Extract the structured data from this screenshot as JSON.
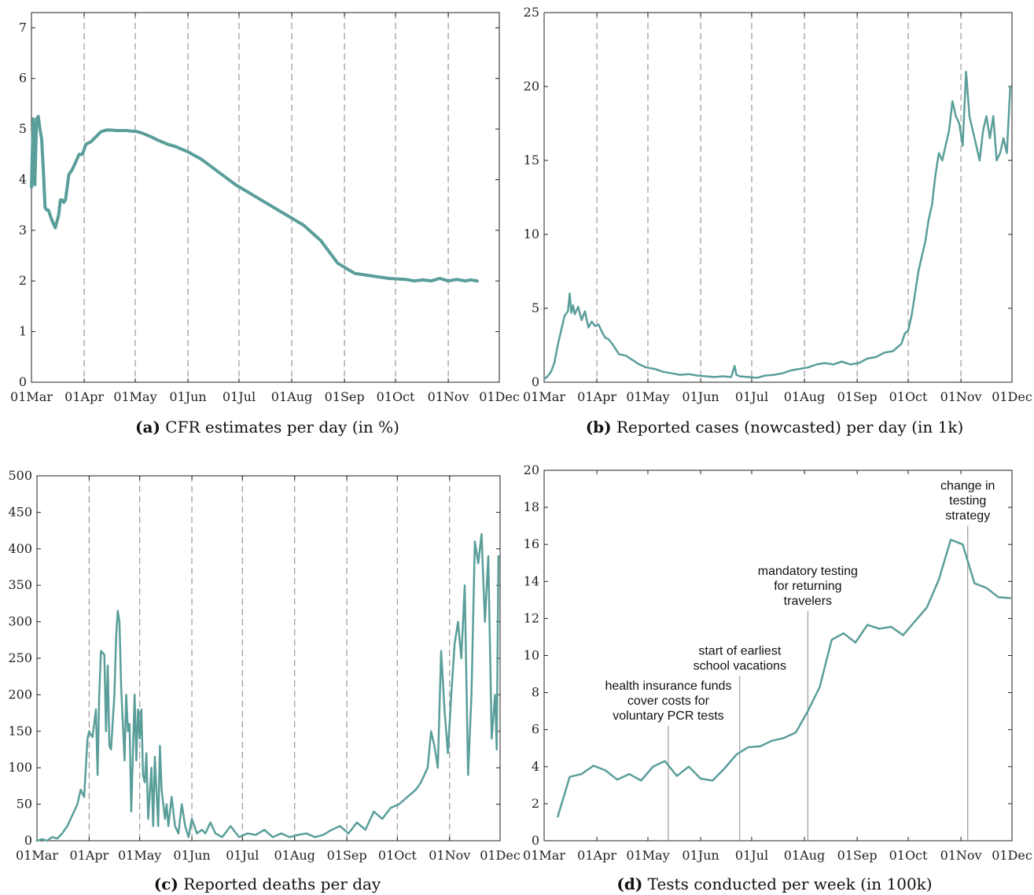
{
  "chart_data": [
    {
      "panel": "(a)",
      "type": "line",
      "title": "CFR estimates per day (in %)",
      "x_ticks": [
        "01Mar",
        "01Apr",
        "01May",
        "01Jun",
        "01Jul",
        "01Aug",
        "01Sep",
        "01Oct",
        "01Nov",
        "01Dec"
      ],
      "ylim": [
        0,
        7.3
      ],
      "y_ticks": [
        "0",
        "1",
        "2",
        "3",
        "4",
        "5",
        "6",
        "7"
      ],
      "vlines_at_months": true,
      "color": "#5a9e9a",
      "series": [
        {
          "x": [
            0,
            1,
            2,
            3,
            4,
            5,
            6,
            7,
            8,
            9,
            10,
            12,
            14,
            16,
            17,
            18,
            19,
            20,
            22,
            24,
            26,
            28,
            30,
            32,
            35,
            38,
            41,
            44,
            47,
            50,
            53,
            56,
            59,
            62,
            65,
            70,
            75,
            80,
            85,
            92,
            100,
            110,
            120,
            130,
            140,
            150,
            160,
            170,
            180,
            190,
            200,
            210,
            220,
            225,
            230,
            235,
            240,
            245,
            250,
            255,
            258,
            262
          ],
          "y": [
            3.85,
            5.2,
            3.9,
            5.2,
            5.25,
            5.0,
            4.8,
            4.2,
            3.45,
            3.4,
            3.4,
            3.2,
            3.05,
            3.3,
            3.6,
            3.6,
            3.55,
            3.6,
            4.1,
            4.2,
            4.35,
            4.5,
            4.5,
            4.7,
            4.75,
            4.85,
            4.95,
            4.98,
            4.98,
            4.97,
            4.97,
            4.97,
            4.96,
            4.95,
            4.92,
            4.85,
            4.77,
            4.7,
            4.65,
            4.55,
            4.4,
            4.15,
            3.9,
            3.7,
            3.5,
            3.3,
            3.1,
            2.8,
            2.35,
            2.15,
            2.1,
            2.05,
            2.03,
            2.0,
            2.02,
            2.0,
            2.05,
            2.0,
            2.03,
            2.0,
            2.02,
            2.0
          ]
        }
      ]
    },
    {
      "panel": "(b)",
      "type": "line",
      "title": "Reported cases (nowcasted) per day (in 1k)",
      "x_ticks": [
        "01Mar",
        "01Apr",
        "01May",
        "01Jun",
        "01Jul",
        "01Aug",
        "01Sep",
        "01Oct",
        "01Nov",
        "01Dec"
      ],
      "ylim": [
        0,
        25
      ],
      "y_ticks": [
        "0",
        "5",
        "10",
        "15",
        "20",
        "25"
      ],
      "vlines_at_months": true,
      "color": "#5a9e9a",
      "series": [
        {
          "x": [
            0,
            2,
            4,
            6,
            8,
            10,
            12,
            14,
            15,
            16,
            17,
            18,
            20,
            22,
            24,
            26,
            28,
            30,
            32,
            34,
            36,
            38,
            40,
            44,
            48,
            52,
            56,
            60,
            65,
            70,
            75,
            80,
            85,
            90,
            95,
            100,
            105,
            110,
            112,
            113,
            115,
            120,
            125,
            130,
            135,
            140,
            145,
            150,
            155,
            160,
            165,
            170,
            175,
            180,
            185,
            190,
            195,
            200,
            205,
            210,
            212,
            214,
            216,
            218,
            220,
            222,
            224,
            226,
            228,
            230,
            232,
            234,
            236,
            238,
            240,
            242,
            244,
            246,
            248,
            250,
            252,
            254,
            256,
            258,
            260,
            262,
            264,
            266,
            268,
            270,
            272,
            274
          ],
          "y": [
            0.2,
            0.4,
            0.7,
            1.3,
            2.5,
            3.5,
            4.5,
            4.8,
            6.0,
            4.7,
            5.2,
            4.6,
            5.1,
            4.2,
            4.8,
            3.7,
            4.1,
            3.8,
            3.9,
            3.4,
            3.0,
            2.9,
            2.6,
            1.9,
            1.8,
            1.5,
            1.2,
            1.0,
            0.9,
            0.7,
            0.6,
            0.5,
            0.55,
            0.45,
            0.4,
            0.35,
            0.4,
            0.35,
            1.1,
            0.5,
            0.4,
            0.35,
            0.3,
            0.45,
            0.5,
            0.6,
            0.8,
            0.9,
            1.0,
            1.2,
            1.3,
            1.2,
            1.4,
            1.2,
            1.3,
            1.6,
            1.7,
            2.0,
            2.1,
            2.6,
            3.3,
            3.5,
            4.5,
            6.0,
            7.5,
            8.5,
            9.5,
            11,
            12,
            14,
            15.5,
            15,
            16,
            17,
            19,
            18,
            17.5,
            16,
            21,
            18,
            17,
            16,
            15,
            17,
            18,
            16.5,
            18,
            15,
            15.5,
            16.5,
            15.5,
            20
          ]
        }
      ]
    },
    {
      "panel": "(c)",
      "type": "line",
      "title": "Reported deaths per day",
      "x_ticks": [
        "01Mar",
        "01Apr",
        "01May",
        "01Jun",
        "01Jul",
        "01Aug",
        "01Sep",
        "01Oct",
        "01Nov",
        "01Dec"
      ],
      "ylim": [
        0,
        500
      ],
      "y_ticks": [
        "0",
        "50",
        "100",
        "150",
        "200",
        "250",
        "300",
        "350",
        "400",
        "450",
        "500"
      ],
      "vlines_at_months": true,
      "color": "#5a9e9a",
      "series": [
        {
          "x": [
            0,
            3,
            6,
            9,
            12,
            15,
            18,
            21,
            24,
            26,
            28,
            30,
            31,
            32,
            33,
            35,
            36,
            37,
            38,
            40,
            41,
            42,
            43,
            44,
            46,
            47,
            48,
            49,
            50,
            52,
            53,
            54,
            55,
            56,
            58,
            59,
            60,
            61,
            62,
            63,
            64,
            65,
            66,
            68,
            69,
            70,
            72,
            73,
            74,
            76,
            77,
            78,
            80,
            82,
            84,
            86,
            88,
            90,
            92,
            95,
            98,
            100,
            103,
            106,
            110,
            115,
            120,
            125,
            130,
            135,
            140,
            145,
            150,
            155,
            160,
            165,
            170,
            175,
            180,
            185,
            190,
            195,
            200,
            205,
            210,
            215,
            220,
            225,
            228,
            230,
            232,
            234,
            236,
            238,
            240,
            242,
            244,
            246,
            248,
            250,
            252,
            254,
            256,
            258,
            260,
            262,
            264,
            266,
            268,
            270,
            272,
            273,
            274
          ],
          "y": [
            0,
            2,
            0,
            5,
            3,
            10,
            20,
            35,
            50,
            70,
            60,
            140,
            150,
            145,
            142,
            180,
            90,
            200,
            260,
            255,
            150,
            240,
            130,
            125,
            200,
            280,
            315,
            300,
            210,
            110,
            200,
            150,
            160,
            40,
            200,
            110,
            180,
            140,
            180,
            90,
            80,
            120,
            30,
            100,
            20,
            115,
            20,
            130,
            70,
            30,
            50,
            20,
            60,
            20,
            10,
            50,
            20,
            5,
            30,
            10,
            15,
            10,
            25,
            10,
            5,
            20,
            5,
            10,
            8,
            15,
            5,
            10,
            5,
            8,
            10,
            5,
            8,
            15,
            20,
            10,
            25,
            15,
            40,
            30,
            45,
            50,
            60,
            70,
            80,
            90,
            100,
            150,
            130,
            100,
            260,
            180,
            120,
            200,
            270,
            300,
            250,
            350,
            90,
            200,
            410,
            380,
            420,
            300,
            390,
            140,
            200,
            125,
            390
          ]
        }
      ]
    },
    {
      "panel": "(d)",
      "type": "line",
      "title": "Tests conducted per week (in 100k)",
      "x_ticks": [
        "01Mar",
        "01Apr",
        "01May",
        "01Jun",
        "01Jul",
        "01Aug",
        "01Sep",
        "01Oct",
        "01Nov",
        "01Dec"
      ],
      "ylim": [
        0,
        20
      ],
      "y_ticks": [
        "0",
        "2",
        "4",
        "6",
        "8",
        "10",
        "12",
        "14",
        "16",
        "18",
        "20"
      ],
      "vlines_at_months": false,
      "color": "#5a9e9a",
      "series": [
        {
          "x": [
            8,
            15,
            22,
            29,
            36,
            43,
            50,
            57,
            64,
            71,
            78,
            85,
            92,
            99,
            106,
            113,
            120,
            127,
            134,
            141,
            148,
            155,
            162,
            169,
            176,
            183,
            190,
            197,
            204,
            211,
            218,
            225,
            232,
            239,
            246,
            253,
            260,
            267,
            274
          ],
          "y": [
            1.3,
            3.45,
            3.6,
            4.05,
            3.8,
            3.3,
            3.6,
            3.25,
            4.0,
            4.3,
            3.5,
            4.0,
            3.35,
            3.25,
            3.9,
            4.65,
            5.05,
            5.1,
            5.4,
            5.55,
            5.85,
            7.0,
            8.3,
            10.85,
            11.2,
            10.7,
            11.65,
            11.45,
            11.55,
            11.1,
            11.85,
            12.6,
            14.1,
            16.25,
            16.0,
            13.9,
            13.65,
            13.15,
            13.1
          ]
        }
      ],
      "annotations": [
        {
          "text_lines": [
            "health insurance funds",
            "cover costs for",
            "voluntary PCR tests"
          ],
          "x": 73,
          "y_line_top": 6.2
        },
        {
          "text_lines": [
            "start of earliest",
            "school vacations"
          ],
          "x": 115,
          "y_line_top": 8.9
        },
        {
          "text_lines": [
            "mandatory testing",
            "for returning",
            "travelers"
          ],
          "x": 155,
          "y_line_top": 12.4
        },
        {
          "text_lines": [
            "change in",
            "testing",
            "strategy"
          ],
          "x": 249,
          "y_line_top": 17.0
        }
      ]
    }
  ],
  "captions": [
    {
      "label": "(a)",
      "text": "CFR estimates per day (in %)"
    },
    {
      "label": "(b)",
      "text": "Reported cases (nowcasted) per day (in 1k)"
    },
    {
      "label": "(c)",
      "text": "Reported deaths per day"
    },
    {
      "label": "(d)",
      "text": "Tests conducted per week (in 100k)"
    }
  ]
}
